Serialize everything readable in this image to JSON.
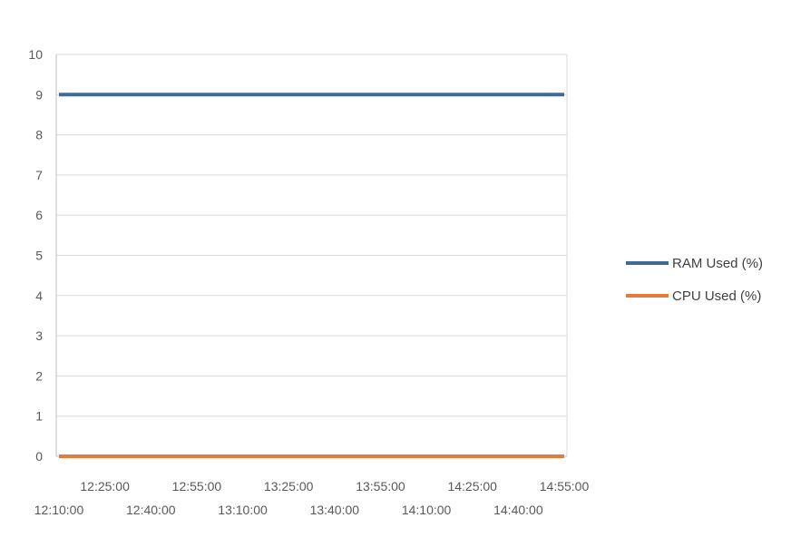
{
  "chart_data": {
    "type": "line",
    "title": "",
    "xlabel": "",
    "ylabel": "",
    "x": [
      "12:10:00",
      "12:25:00",
      "12:40:00",
      "12:55:00",
      "13:10:00",
      "13:25:00",
      "13:40:00",
      "13:55:00",
      "14:10:00",
      "14:25:00",
      "14:40:00",
      "14:55:00"
    ],
    "ylim": [
      0,
      10
    ],
    "yticks": [
      0,
      1,
      2,
      3,
      4,
      5,
      6,
      7,
      8,
      9,
      10
    ],
    "grid": true,
    "legend_position": "right",
    "series": [
      {
        "name": "RAM Used (%)",
        "color": "#3d6a99",
        "values": [
          9,
          9,
          9,
          9,
          9,
          9,
          9,
          9,
          9,
          9,
          9,
          9
        ]
      },
      {
        "name": "CPU Used (%)",
        "color": "#e8793d",
        "values": [
          0,
          0,
          0,
          0,
          0,
          0,
          0,
          0,
          0,
          0,
          0,
          0
        ]
      }
    ]
  }
}
